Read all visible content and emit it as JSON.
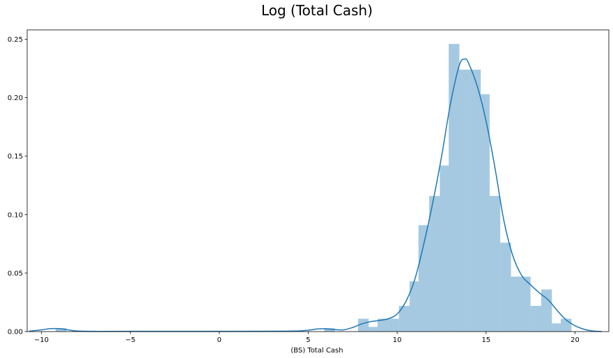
{
  "chart_data": {
    "type": "bar",
    "subtype": "histogram-with-kde",
    "title": "Log (Total Cash)",
    "xlabel": "(BS) Total Cash",
    "ylabel": "",
    "xlim": [
      -10.8,
      21.9
    ],
    "ylim": [
      0,
      0.258
    ],
    "xticks": [
      -10,
      -5,
      0,
      5,
      10,
      15,
      20
    ],
    "yticks": [
      0.0,
      0.05,
      0.1,
      0.15,
      0.2,
      0.25
    ],
    "ytick_labels": [
      "0.00",
      "0.05",
      "0.10",
      "0.15",
      "0.20",
      "0.25"
    ],
    "grid": false,
    "legend": "none",
    "bar_color": "#1f77b4",
    "bar_opacity": 0.4,
    "line_color": "#1f77b4",
    "bins": [
      {
        "x0": -9.2,
        "x1": -8.6,
        "y": 0.003
      },
      {
        "x0": 5.9,
        "x1": 6.5,
        "y": 0.003
      },
      {
        "x0": 7.8,
        "x1": 8.4,
        "y": 0.011
      },
      {
        "x0": 8.4,
        "x1": 8.9,
        "y": 0.004
      },
      {
        "x0": 8.9,
        "x1": 9.5,
        "y": 0.011
      },
      {
        "x0": 9.5,
        "x1": 10.1,
        "y": 0.011
      },
      {
        "x0": 10.1,
        "x1": 10.7,
        "y": 0.022
      },
      {
        "x0": 10.7,
        "x1": 11.2,
        "y": 0.043
      },
      {
        "x0": 11.2,
        "x1": 11.8,
        "y": 0.091
      },
      {
        "x0": 11.8,
        "x1": 12.4,
        "y": 0.116
      },
      {
        "x0": 12.4,
        "x1": 12.9,
        "y": 0.142
      },
      {
        "x0": 12.9,
        "x1": 13.5,
        "y": 0.246
      },
      {
        "x0": 13.5,
        "x1": 14.1,
        "y": 0.224
      },
      {
        "x0": 14.1,
        "x1": 14.7,
        "y": 0.224
      },
      {
        "x0": 14.7,
        "x1": 15.2,
        "y": 0.203
      },
      {
        "x0": 15.2,
        "x1": 15.8,
        "y": 0.116
      },
      {
        "x0": 15.8,
        "x1": 16.4,
        "y": 0.076
      },
      {
        "x0": 16.4,
        "x1": 16.9,
        "y": 0.047
      },
      {
        "x0": 16.9,
        "x1": 17.5,
        "y": 0.047
      },
      {
        "x0": 17.5,
        "x1": 18.1,
        "y": 0.022
      },
      {
        "x0": 18.1,
        "x1": 18.7,
        "y": 0.036
      },
      {
        "x0": 18.7,
        "x1": 19.2,
        "y": 0.007
      },
      {
        "x0": 19.2,
        "x1": 19.8,
        "y": 0.011
      }
    ],
    "kde": {
      "x": [
        -10.7,
        -10.0,
        -9.5,
        -9.0,
        -8.5,
        -8.0,
        -7.0,
        -5.0,
        0.0,
        4.0,
        5.0,
        5.5,
        6.0,
        6.5,
        7.0,
        7.5,
        8.0,
        8.5,
        9.0,
        9.5,
        10.0,
        10.5,
        11.0,
        11.5,
        12.0,
        12.5,
        13.0,
        13.5,
        13.8,
        14.0,
        14.5,
        15.0,
        15.5,
        16.0,
        16.5,
        17.0,
        17.5,
        18.0,
        18.5,
        19.0,
        19.5,
        20.0,
        20.5,
        21.0,
        21.5
      ],
      "y": [
        0.0003,
        0.0015,
        0.0025,
        0.0025,
        0.0015,
        0.0005,
        0.0002,
        0.0002,
        0.0002,
        0.0004,
        0.0012,
        0.0022,
        0.0024,
        0.0017,
        0.0015,
        0.0035,
        0.0065,
        0.0085,
        0.0095,
        0.011,
        0.015,
        0.026,
        0.045,
        0.075,
        0.11,
        0.15,
        0.195,
        0.228,
        0.233,
        0.23,
        0.21,
        0.18,
        0.14,
        0.095,
        0.065,
        0.048,
        0.04,
        0.033,
        0.027,
        0.018,
        0.01,
        0.005,
        0.002,
        0.0005,
        0.0001
      ]
    }
  }
}
